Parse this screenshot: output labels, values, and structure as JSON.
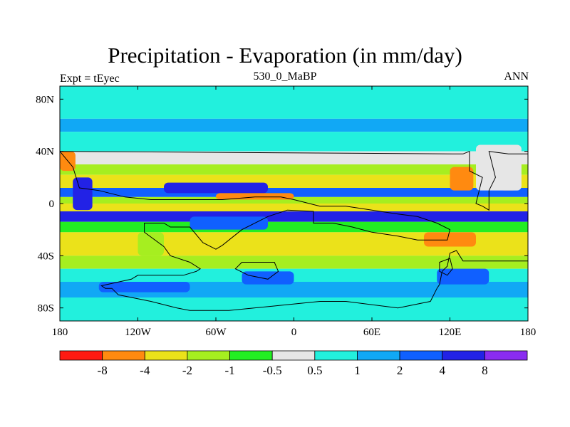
{
  "chart_data": {
    "type": "heatmap",
    "title": "Precipitation - Evaporation (in mm/day)",
    "subtitle": "530_0_MaBP",
    "left_string": "Expt = tEyec",
    "right_string": "ANN",
    "xlim": [
      -180,
      180
    ],
    "ylim": [
      -90,
      90
    ],
    "x_ticks": [
      {
        "value": -180,
        "label": "180"
      },
      {
        "value": -120,
        "label": "120W"
      },
      {
        "value": -60,
        "label": "60W"
      },
      {
        "value": 0,
        "label": "0"
      },
      {
        "value": 60,
        "label": "60E"
      },
      {
        "value": 120,
        "label": "120E"
      },
      {
        "value": 180,
        "label": "180"
      }
    ],
    "y_ticks": [
      {
        "value": 80,
        "label": "80N"
      },
      {
        "value": 40,
        "label": "40N"
      },
      {
        "value": 0,
        "label": "0"
      },
      {
        "value": -40,
        "label": "40S"
      },
      {
        "value": -80,
        "label": "80S"
      }
    ],
    "colorbar": {
      "levels": [
        -8,
        -4,
        -2,
        -1,
        -0.5,
        0.5,
        1,
        2,
        4,
        8
      ],
      "labels": [
        "-8",
        "-4",
        "-2",
        "-1",
        "-0.5",
        "0.5",
        "1",
        "2",
        "4",
        "8"
      ],
      "colors": [
        "#ff1a12",
        "#ff8a10",
        "#ebe21a",
        "#a6ee20",
        "#22ee22",
        "#e6e6e6",
        "#22f0dd",
        "#11a8f5",
        "#1060ff",
        "#2222e6",
        "#8a2cf0"
      ]
    },
    "field_bands": [
      {
        "lat": [
          65,
          90
        ],
        "color": "#22f0dd"
      },
      {
        "lat": [
          55,
          65
        ],
        "color": "#11a8f5"
      },
      {
        "lat": [
          40,
          55
        ],
        "color": "#22f0dd"
      },
      {
        "lat": [
          30,
          40
        ],
        "color": "#e6e6e6"
      },
      {
        "lat": [
          22,
          30
        ],
        "color": "#a6ee20"
      },
      {
        "lat": [
          12,
          22
        ],
        "color": "#ebe21a"
      },
      {
        "lat": [
          5,
          12
        ],
        "color": "#1060ff"
      },
      {
        "lat": [
          0,
          5
        ],
        "color": "#a6ee20"
      },
      {
        "lat": [
          -6,
          0
        ],
        "color": "#ebe21a"
      },
      {
        "lat": [
          -14,
          -6
        ],
        "color": "#2222e6"
      },
      {
        "lat": [
          -22,
          -14
        ],
        "color": "#22ee22"
      },
      {
        "lat": [
          -40,
          -22
        ],
        "color": "#ebe21a"
      },
      {
        "lat": [
          -50,
          -40
        ],
        "color": "#a6ee20"
      },
      {
        "lat": [
          -60,
          -50
        ],
        "color": "#22f0dd"
      },
      {
        "lat": [
          -72,
          -60
        ],
        "color": "#11a8f5"
      },
      {
        "lat": [
          -90,
          -72
        ],
        "color": "#22f0dd"
      }
    ],
    "field_patches": [
      {
        "lon": [
          -170,
          -155
        ],
        "lat": [
          -5,
          20
        ],
        "color": "#2222e6"
      },
      {
        "lon": [
          -100,
          -20
        ],
        "lat": [
          8,
          16
        ],
        "color": "#2222e6"
      },
      {
        "lon": [
          -60,
          0
        ],
        "lat": [
          3,
          8
        ],
        "color": "#ff8a10"
      },
      {
        "lon": [
          120,
          138
        ],
        "lat": [
          10,
          28
        ],
        "color": "#ff8a10"
      },
      {
        "lon": [
          158,
          172
        ],
        "lat": [
          10,
          25
        ],
        "color": "#ff8a10"
      },
      {
        "lon": [
          100,
          140
        ],
        "lat": [
          -33,
          -22
        ],
        "color": "#ff8a10"
      },
      {
        "lon": [
          -80,
          -20
        ],
        "lat": [
          -20,
          -10
        ],
        "color": "#1060ff"
      },
      {
        "lon": [
          -40,
          0
        ],
        "lat": [
          -62,
          -52
        ],
        "color": "#1060ff"
      },
      {
        "lon": [
          -150,
          -80
        ],
        "lat": [
          -68,
          -60
        ],
        "color": "#1060ff"
      },
      {
        "lon": [
          110,
          150
        ],
        "lat": [
          -62,
          -50
        ],
        "color": "#1060ff"
      },
      {
        "lon": [
          140,
          175
        ],
        "lat": [
          10,
          45
        ],
        "color": "#e6e6e6"
      },
      {
        "lon": [
          -180,
          -168
        ],
        "lat": [
          25,
          40
        ],
        "color": "#ff8a10"
      },
      {
        "lon": [
          -120,
          -100
        ],
        "lat": [
          -40,
          -22
        ],
        "color": "#a6ee20"
      }
    ],
    "continents": [
      {
        "name": "laurasia-east",
        "points": [
          [
            130,
            38
          ],
          [
            135,
            40
          ],
          [
            135,
            25
          ],
          [
            145,
            20
          ],
          [
            140,
            0
          ],
          [
            145,
            -2
          ],
          [
            150,
            -5
          ],
          [
            150,
            10
          ],
          [
            155,
            20
          ],
          [
            150,
            40
          ],
          [
            165,
            38
          ],
          [
            180,
            38
          ],
          [
            180,
            -44
          ],
          [
            130,
            -44
          ],
          [
            125,
            -36
          ],
          [
            120,
            -38
          ],
          [
            118,
            -48
          ],
          [
            114,
            -52
          ],
          [
            112,
            -62
          ],
          [
            110,
            -65
          ],
          [
            105,
            -75
          ],
          [
            80,
            -80
          ],
          [
            40,
            -75
          ],
          [
            20,
            -75
          ],
          [
            -10,
            -78
          ],
          [
            -50,
            -82
          ],
          [
            -80,
            -82
          ],
          [
            -90,
            -80
          ],
          [
            -110,
            -75
          ],
          [
            -135,
            -70
          ],
          [
            -140,
            -65
          ],
          [
            -145,
            -65
          ],
          [
            -148,
            -63
          ],
          [
            -125,
            -58
          ],
          [
            -120,
            -55
          ],
          [
            -108,
            -55
          ],
          [
            -85,
            -55
          ],
          [
            -75,
            -52
          ],
          [
            -72,
            -50
          ],
          [
            -80,
            -45
          ],
          [
            -95,
            -40
          ],
          [
            -100,
            -33
          ],
          [
            -115,
            -22
          ],
          [
            -115,
            -15
          ],
          [
            -100,
            -15
          ],
          [
            -95,
            -18
          ],
          [
            -80,
            -18
          ],
          [
            -70,
            -30
          ],
          [
            -60,
            -35
          ],
          [
            -55,
            -32
          ],
          [
            -50,
            -28
          ],
          [
            -40,
            -20
          ],
          [
            -20,
            -10
          ],
          [
            -5,
            -5
          ],
          [
            15,
            -6
          ],
          [
            15,
            -15
          ],
          [
            30,
            -15
          ],
          [
            45,
            -18
          ],
          [
            60,
            -22
          ],
          [
            80,
            -25
          ],
          [
            95,
            -28
          ],
          [
            118,
            -28
          ],
          [
            120,
            -20
          ],
          [
            110,
            -15
          ],
          [
            95,
            -10
          ],
          [
            80,
            -8
          ],
          [
            60,
            -5
          ],
          [
            40,
            -2
          ],
          [
            20,
            -2
          ],
          [
            0,
            3
          ],
          [
            -10,
            5
          ],
          [
            -30,
            5
          ],
          [
            -55,
            3
          ],
          [
            -80,
            3
          ],
          [
            -110,
            3
          ],
          [
            -130,
            5
          ],
          [
            -150,
            10
          ],
          [
            -165,
            12
          ],
          [
            -170,
            28
          ],
          [
            -180,
            40
          ]
        ]
      },
      {
        "name": "island-south",
        "points": [
          [
            -40,
            -45
          ],
          [
            -15,
            -45
          ],
          [
            -12,
            -52
          ],
          [
            -20,
            -58
          ],
          [
            -35,
            -55
          ],
          [
            -45,
            -50
          ]
        ]
      },
      {
        "name": "island-se",
        "points": [
          [
            112,
            -45
          ],
          [
            120,
            -42
          ],
          [
            122,
            -50
          ],
          [
            118,
            -55
          ],
          [
            112,
            -52
          ]
        ]
      }
    ]
  }
}
